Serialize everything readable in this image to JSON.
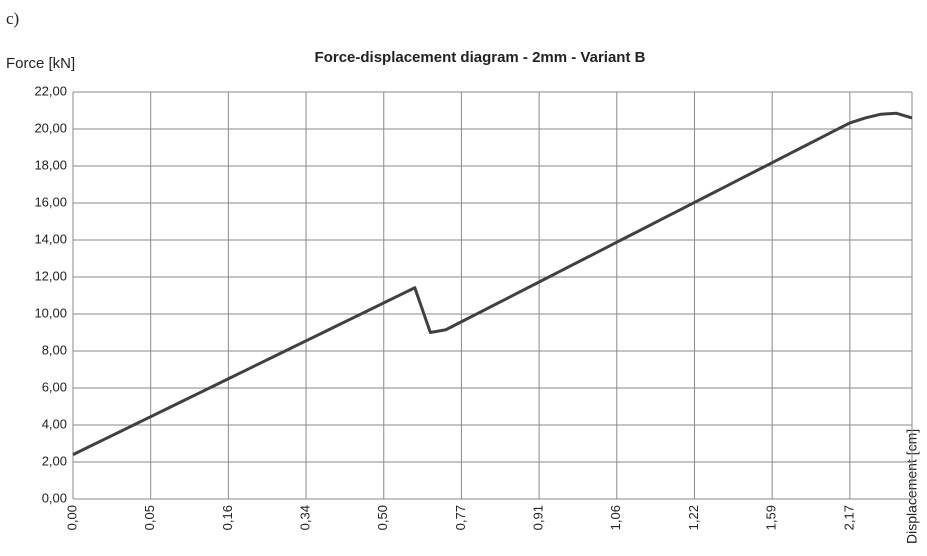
{
  "chart_data": {
    "type": "line",
    "label": "c)",
    "title": "Force-displacement  diagram  - 2mm - Variant  B",
    "y_label": "Force [kN]",
    "x_label": "Displacement [cm]",
    "categories": [
      "0,00",
      null,
      null,
      null,
      null,
      "0,05",
      null,
      null,
      null,
      null,
      "0,16",
      null,
      null,
      null,
      null,
      "0,34",
      null,
      null,
      null,
      null,
      "0,50",
      null,
      null,
      null,
      null,
      "0,77",
      null,
      null,
      null,
      null,
      "0,91",
      null,
      null,
      null,
      null,
      "1,06",
      null,
      null,
      null,
      null,
      "1,22",
      null,
      null,
      null,
      null,
      "1,59",
      null,
      null,
      null,
      null,
      "2,17",
      null,
      null,
      null,
      null
    ],
    "values": [
      2.4,
      2.81,
      3.22,
      3.63,
      4.04,
      4.45,
      4.86,
      5.27,
      5.68,
      6.09,
      6.5,
      6.91,
      7.32,
      7.73,
      8.14,
      8.55,
      8.96,
      9.37,
      9.78,
      10.19,
      10.6,
      11.01,
      11.42,
      9.0,
      9.15,
      9.58,
      10.01,
      10.44,
      10.87,
      11.3,
      11.73,
      12.16,
      12.59,
      13.02,
      13.45,
      13.88,
      14.31,
      14.74,
      15.17,
      15.6,
      16.03,
      16.46,
      16.89,
      17.32,
      17.75,
      18.18,
      18.61,
      19.04,
      19.47,
      19.9,
      20.33,
      20.6,
      20.8,
      20.85,
      20.6
    ],
    "color": "#404040",
    "ylim": [
      0,
      22
    ],
    "yticks": [
      {
        "value": 0,
        "label": "0,00"
      },
      {
        "value": 2,
        "label": "2,00"
      },
      {
        "value": 4,
        "label": "4,00"
      },
      {
        "value": 6,
        "label": "6,00"
      },
      {
        "value": 8,
        "label": "8,00"
      },
      {
        "value": 10,
        "label": "10,00"
      },
      {
        "value": 12,
        "label": "12,00"
      },
      {
        "value": 14,
        "label": "14,00"
      },
      {
        "value": 16,
        "label": "16,00"
      },
      {
        "value": 18,
        "label": "18,00"
      },
      {
        "value": 20,
        "label": "20,00"
      },
      {
        "value": 22,
        "label": "22,00"
      }
    ],
    "grid": true
  }
}
